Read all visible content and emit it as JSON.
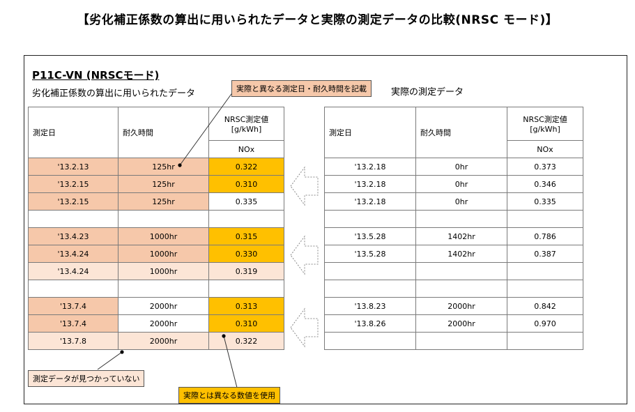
{
  "page_title": "【劣化補正係数の算出に用いられたデータと実際の測定データの比較(NRSC モード)】",
  "model": "P11C-VN (NRSCモード)",
  "left_subtitle": "劣化補正係数の算出に用いられたデータ",
  "right_subtitle": "実際の測定データ",
  "callouts": {
    "top": "実際と異なる測定日・耐久時間を記載",
    "missing": "測定データが見つかっていない",
    "value": "実際とは異なる数値を使用"
  },
  "left_table": {
    "headers": {
      "date": "測定日",
      "hours": "耐久時間",
      "value_line1": "NRSC測定値",
      "value_line2": "[g/kWh]",
      "sub": "NOx"
    },
    "rows": [
      {
        "date": "'13.2.13",
        "hours": "125hr",
        "nox": "0.322"
      },
      {
        "date": "'13.2.15",
        "hours": "125hr",
        "nox": "0.310"
      },
      {
        "date": "'13.2.15",
        "hours": "125hr",
        "nox": "0.335"
      },
      {
        "date": "",
        "hours": "",
        "nox": ""
      },
      {
        "date": "'13.4.23",
        "hours": "1000hr",
        "nox": "0.315"
      },
      {
        "date": "'13.4.24",
        "hours": "1000hr",
        "nox": "0.330"
      },
      {
        "date": "'13.4.24",
        "hours": "1000hr",
        "nox": "0.319"
      },
      {
        "date": "",
        "hours": "",
        "nox": ""
      },
      {
        "date": "'13.7.4",
        "hours": "2000hr",
        "nox": "0.313"
      },
      {
        "date": "'13.7.4",
        "hours": "2000hr",
        "nox": "0.310"
      },
      {
        "date": "'13.7.8",
        "hours": "2000hr",
        "nox": "0.322"
      }
    ]
  },
  "right_table": {
    "headers": {
      "date": "測定日",
      "hours": "耐久時間",
      "value_line1": "NRSC測定値",
      "value_line2": "[g/kWh]",
      "sub": "NOx"
    },
    "rows": [
      {
        "date": "'13.2.18",
        "hours": "0hr",
        "nox": "0.373"
      },
      {
        "date": "'13.2.18",
        "hours": "0hr",
        "nox": "0.346"
      },
      {
        "date": "'13.2.18",
        "hours": "0hr",
        "nox": "0.335"
      },
      {
        "date": "",
        "hours": "",
        "nox": ""
      },
      {
        "date": "'13.5.28",
        "hours": "1402hr",
        "nox": "0.786"
      },
      {
        "date": "'13.5.28",
        "hours": "1402hr",
        "nox": "0.387"
      },
      {
        "date": "",
        "hours": "",
        "nox": ""
      },
      {
        "date": "",
        "hours": "",
        "nox": ""
      },
      {
        "date": "'13.8.23",
        "hours": "2000hr",
        "nox": "0.842"
      },
      {
        "date": "'13.8.26",
        "hours": "2000hr",
        "nox": "0.970"
      },
      {
        "date": "",
        "hours": "",
        "nox": ""
      }
    ]
  },
  "colors": {
    "orange": "#f6c8aa",
    "light_orange": "#fce5d6",
    "gold": "#ffc000"
  }
}
